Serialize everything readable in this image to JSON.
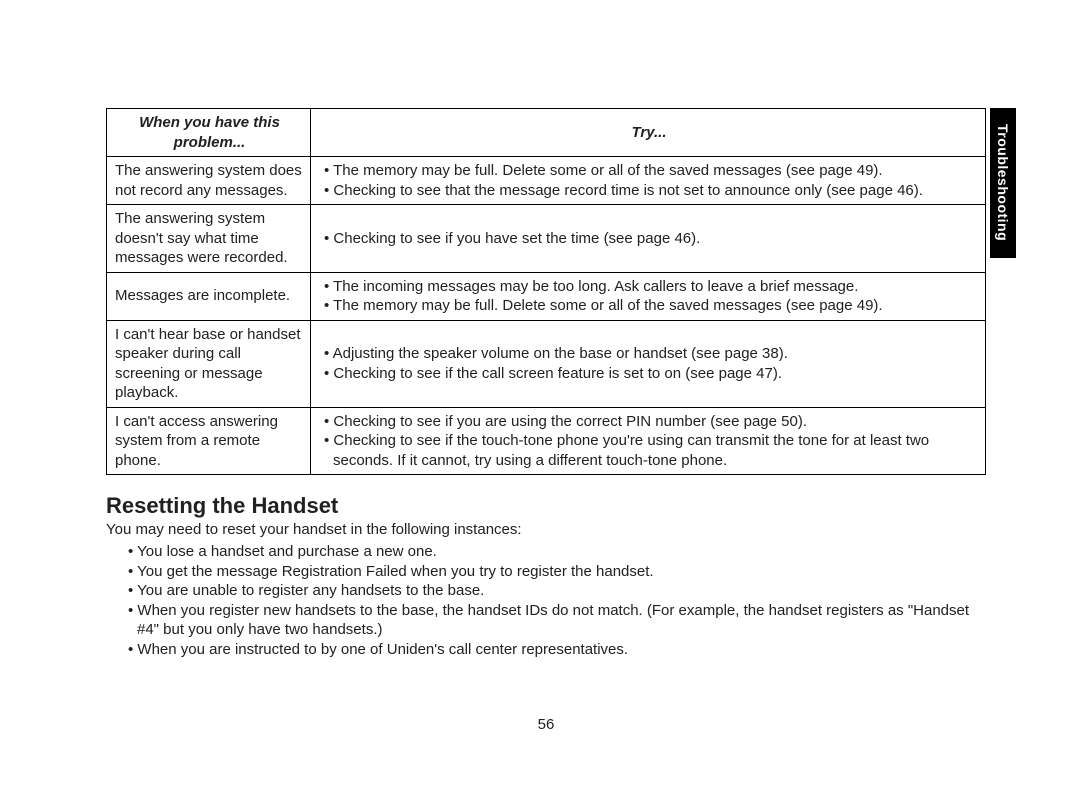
{
  "sideTab": "Troubleshooting",
  "pageNumber": "56",
  "table": {
    "header": {
      "problem": "When you have this problem...",
      "try": "Try..."
    },
    "rows": [
      {
        "problem": "The answering system does not record any messages.",
        "bullets": [
          "• The memory may be full. Delete some or all of the saved messages (see page 49).",
          "• Checking to see that the message record time is not set to announce only (see page 46)."
        ]
      },
      {
        "problem": "The answering system doesn't say what time messages were recorded.",
        "bullets": [
          "• Checking to see if you have set the time (see page 46)."
        ]
      },
      {
        "problem": "Messages are incomplete.",
        "bullets": [
          "• The incoming messages may be too long. Ask callers to leave a brief message.",
          "• The memory may be full. Delete some or all of the saved messages (see page 49)."
        ]
      },
      {
        "problem": "I can't hear base or handset speaker during call screening or message playback.",
        "bullets": [
          "• Adjusting the speaker volume on the base or handset (see page 38).",
          "• Checking to see if the call screen feature is set to on (see page 47)."
        ]
      },
      {
        "problem": "I can't access answering system from a remote phone.",
        "bullets": [
          "• Checking to see if you are using the correct PIN number (see page 50).",
          "• Checking to see if the touch-tone phone you're using can transmit the tone for at least two seconds. If it cannot, try using a different touch-tone phone."
        ]
      }
    ]
  },
  "section": {
    "heading": "Resetting the Handset",
    "intro": "You may need to reset your handset in the following instances:",
    "items": [
      "You lose a handset and purchase a new one.",
      "You get the message Registration Failed when you try to register the handset.",
      "You are unable to register any handsets to the base.",
      "When you register new handsets to the base, the handset IDs do not match. (For example, the handset registers as \"Handset #4\" but you only have two handsets.)",
      "When you are instructed to by one of Uniden's call center representatives."
    ]
  }
}
